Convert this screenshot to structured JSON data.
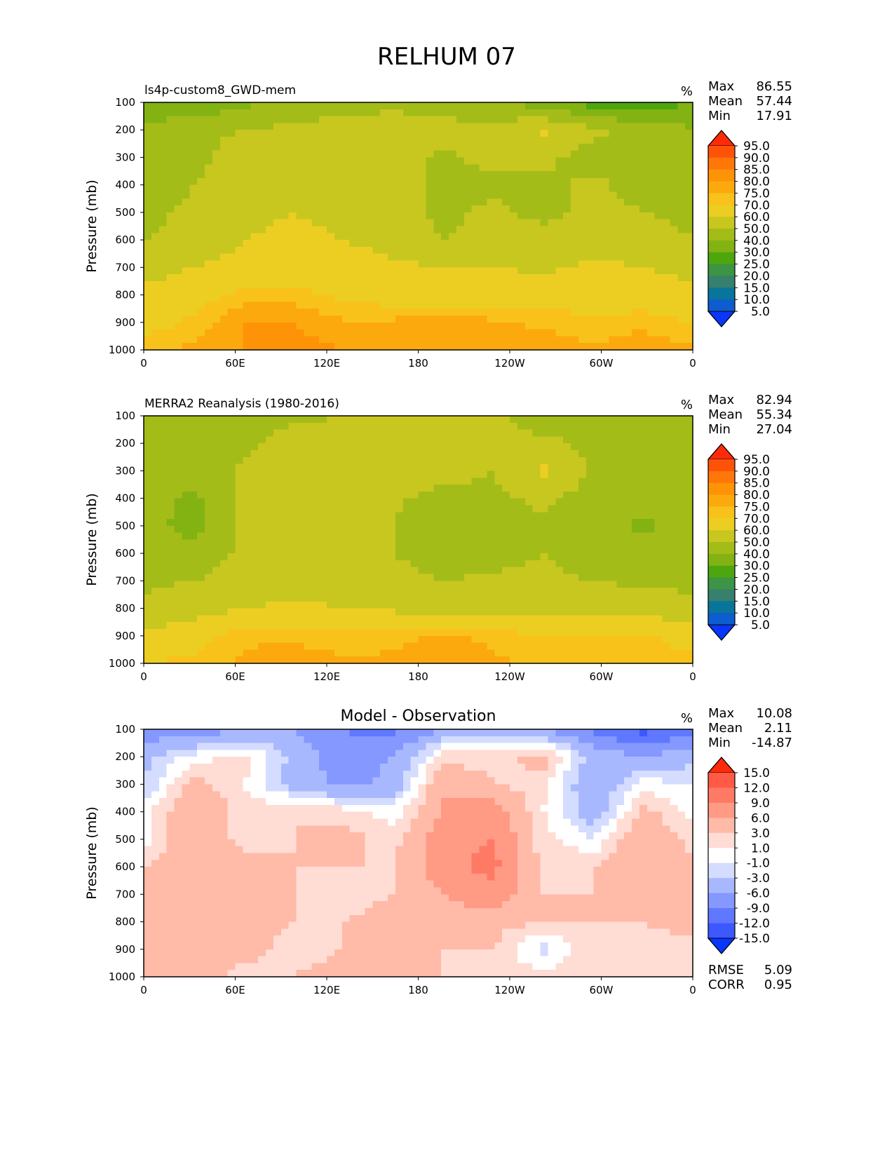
{
  "figure_title": "RELHUM 07",
  "chart_data": [
    {
      "type": "heatmap",
      "title": "ls4p-custom8_GWD-mem",
      "units": "%",
      "ylabel": "Pressure (mb)",
      "xlabel": "",
      "x_ticks": [
        "0",
        "60E",
        "120E",
        "180",
        "120W",
        "60W",
        "0"
      ],
      "y_ticks": [
        "100",
        "200",
        "300",
        "400",
        "500",
        "600",
        "700",
        "800",
        "900",
        "1000"
      ],
      "ylim": [
        1000,
        100
      ],
      "xlim": [
        0,
        360
      ],
      "stats": [
        {
          "label": "Max",
          "value": "86.55"
        },
        {
          "label": "Mean",
          "value": "57.44"
        },
        {
          "label": "Min",
          "value": "17.91"
        }
      ],
      "colorbar": {
        "levels": [
          "95.0",
          "90.0",
          "85.0",
          "80.0",
          "75.0",
          "70.0",
          "60.0",
          "50.0",
          "40.0",
          "30.0",
          "25.0",
          "20.0",
          "15.0",
          "10.0",
          "5.0"
        ],
        "colors": [
          "#ff2a0a",
          "#ff5209",
          "#ff7708",
          "#fe9308",
          "#fca90e",
          "#f9c21a",
          "#ecce22",
          "#c8c71f",
          "#a4bc18",
          "#82b313",
          "#4ea60e",
          "#3c9444",
          "#36806d",
          "#08759a",
          "#0d5dd0",
          "#0836fa"
        ]
      },
      "description_grid_note": "rows top=100mb to bottom=1000mb; cols 0 to 360 longitude",
      "grid": [
        [
          30,
          32,
          38,
          44,
          46,
          48,
          46,
          42,
          34,
          25,
          22,
          32
        ],
        [
          44,
          47,
          50,
          52,
          54,
          54,
          53,
          53,
          62,
          52,
          47,
          40
        ],
        [
          46,
          46,
          56,
          56,
          56,
          56,
          48,
          54,
          52,
          46,
          47,
          46
        ],
        [
          44,
          50,
          56,
          58,
          58,
          56,
          46,
          47,
          48,
          52,
          46,
          46
        ],
        [
          48,
          52,
          56,
          60,
          56,
          56,
          47,
          53,
          46,
          54,
          50,
          48
        ],
        [
          50,
          52,
          60,
          64,
          60,
          56,
          50,
          54,
          56,
          56,
          54,
          50
        ],
        [
          56,
          60,
          64,
          66,
          66,
          62,
          60,
          60,
          58,
          62,
          60,
          58
        ],
        [
          62,
          66,
          72,
          72,
          68,
          66,
          64,
          66,
          66,
          64,
          64,
          62
        ],
        [
          66,
          72,
          80,
          80,
          76,
          76,
          80,
          76,
          74,
          72,
          74,
          70
        ],
        [
          74,
          76,
          80,
          82,
          80,
          80,
          80,
          78,
          78,
          76,
          78,
          76
        ]
      ]
    },
    {
      "type": "heatmap",
      "title": "MERRA2 Reanalysis (1980-2016)",
      "units": "%",
      "ylabel": "Pressure (mb)",
      "xlabel": "",
      "x_ticks": [
        "0",
        "60E",
        "120E",
        "180",
        "120W",
        "60W",
        "0"
      ],
      "y_ticks": [
        "100",
        "200",
        "300",
        "400",
        "500",
        "600",
        "700",
        "800",
        "900",
        "1000"
      ],
      "ylim": [
        1000,
        100
      ],
      "xlim": [
        0,
        360
      ],
      "stats": [
        {
          "label": "Max",
          "value": "82.94"
        },
        {
          "label": "Mean",
          "value": "55.34"
        },
        {
          "label": "Min",
          "value": "27.04"
        }
      ],
      "colorbar": {
        "levels": [
          "95.0",
          "90.0",
          "85.0",
          "80.0",
          "75.0",
          "70.0",
          "60.0",
          "50.0",
          "40.0",
          "30.0",
          "25.0",
          "20.0",
          "15.0",
          "10.0",
          "5.0"
        ],
        "colors": [
          "#ff2a0a",
          "#ff5209",
          "#ff7708",
          "#fe9308",
          "#fca90e",
          "#f9c21a",
          "#ecce22",
          "#c8c71f",
          "#a4bc18",
          "#82b313",
          "#4ea60e",
          "#3c9444",
          "#36806d",
          "#08759a",
          "#0d5dd0",
          "#0836fa"
        ]
      },
      "grid": [
        [
          44,
          46,
          44,
          48,
          50,
          52,
          54,
          52,
          46,
          44,
          44,
          44
        ],
        [
          46,
          46,
          48,
          54,
          56,
          56,
          54,
          50,
          52,
          48,
          48,
          46
        ],
        [
          46,
          44,
          52,
          56,
          56,
          56,
          54,
          50,
          62,
          48,
          46,
          44
        ],
        [
          44,
          38,
          52,
          56,
          56,
          52,
          46,
          48,
          52,
          46,
          44,
          46
        ],
        [
          44,
          36,
          52,
          56,
          56,
          50,
          40,
          46,
          48,
          46,
          38,
          46
        ],
        [
          46,
          44,
          52,
          56,
          56,
          50,
          44,
          46,
          50,
          46,
          44,
          46
        ],
        [
          48,
          50,
          54,
          56,
          56,
          54,
          50,
          52,
          52,
          50,
          48,
          48
        ],
        [
          52,
          56,
          60,
          62,
          60,
          58,
          56,
          56,
          58,
          56,
          56,
          52
        ],
        [
          62,
          66,
          74,
          74,
          72,
          74,
          76,
          74,
          70,
          70,
          72,
          66
        ],
        [
          70,
          72,
          76,
          78,
          76,
          76,
          76,
          76,
          74,
          74,
          74,
          72
        ]
      ]
    },
    {
      "type": "heatmap",
      "title": "Model - Observation",
      "units": "%",
      "ylabel": "Pressure (mb)",
      "xlabel": "",
      "x_ticks": [
        "0",
        "60E",
        "120E",
        "180",
        "120W",
        "60W",
        "0"
      ],
      "y_ticks": [
        "100",
        "200",
        "300",
        "400",
        "500",
        "600",
        "700",
        "800",
        "900",
        "1000"
      ],
      "ylim": [
        1000,
        100
      ],
      "xlim": [
        0,
        360
      ],
      "stats": [
        {
          "label": "Max",
          "value": "10.08"
        },
        {
          "label": "Mean",
          "value": "2.11"
        },
        {
          "label": "Min",
          "value": "-14.87"
        }
      ],
      "metrics": [
        {
          "label": "RMSE",
          "value": "5.09"
        },
        {
          "label": "CORR",
          "value": "0.95"
        }
      ],
      "colorbar": {
        "levels": [
          "15.0",
          "12.0",
          "9.0",
          "6.0",
          "3.0",
          "1.0",
          "-1.0",
          "-3.0",
          "-6.0",
          "-9.0",
          "-12.0",
          "-15.0"
        ],
        "colors": [
          "#ff2a0a",
          "#ff5a45",
          "#ff7a65",
          "#ff9a85",
          "#ffbaa8",
          "#ffdcd4",
          "#ffffff",
          "#d4dcff",
          "#a8b8ff",
          "#8498ff",
          "#6078ff",
          "#3c58ff",
          "#0836fa"
        ]
      },
      "grid": [
        [
          -8,
          -8,
          -6,
          -6,
          -9,
          -10,
          -6,
          -4,
          -6,
          -10,
          -13,
          -10
        ],
        [
          -4,
          0,
          2,
          -4,
          -8,
          -6,
          2,
          2,
          4,
          -4,
          -6,
          -4
        ],
        [
          -3,
          4,
          1,
          -4,
          -7,
          -5,
          6,
          3,
          2,
          -6,
          0,
          -1
        ],
        [
          0,
          6,
          2,
          3,
          2,
          0,
          6,
          8,
          1,
          -5,
          4,
          0
        ],
        [
          0,
          6,
          2,
          3,
          4,
          2,
          8,
          9,
          2,
          -1,
          6,
          2
        ],
        [
          3,
          6,
          4,
          3,
          3,
          3,
          8,
          10,
          2,
          3,
          6,
          4
        ],
        [
          4,
          6,
          4,
          3,
          2,
          3,
          6,
          8,
          3,
          3,
          4,
          4
        ],
        [
          4,
          6,
          4,
          3,
          3,
          4,
          5,
          4,
          3,
          3,
          3,
          4
        ],
        [
          4,
          6,
          4,
          2,
          3,
          3,
          3,
          3,
          -2,
          3,
          2,
          2
        ],
        [
          4,
          4,
          2,
          3,
          4,
          3,
          3,
          2,
          2,
          3,
          2,
          3
        ]
      ]
    }
  ]
}
